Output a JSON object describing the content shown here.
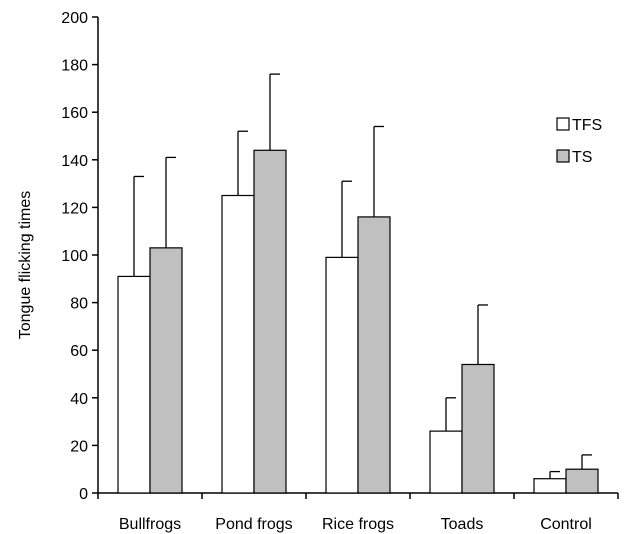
{
  "chart_data": {
    "type": "bar",
    "categories": [
      "Bullfrogs",
      "Pond frogs",
      "Rice frogs",
      "Toads",
      "Control"
    ],
    "series": [
      {
        "name": "TFS",
        "values": [
          91,
          125,
          99,
          26,
          6
        ],
        "errors": [
          42,
          27,
          32,
          14,
          3
        ],
        "color": "#ffffff"
      },
      {
        "name": "TS",
        "values": [
          103,
          144,
          116,
          54,
          10
        ],
        "errors": [
          38,
          32,
          38,
          25,
          6
        ],
        "color": "#c0c0c0"
      }
    ],
    "title": "",
    "xlabel": "",
    "ylabel": "Tongue flicking times",
    "ylim": [
      0,
      200
    ],
    "yticks": [
      0,
      20,
      40,
      60,
      80,
      100,
      120,
      140,
      160,
      180,
      200
    ],
    "grid": false,
    "legend_position": "right"
  }
}
